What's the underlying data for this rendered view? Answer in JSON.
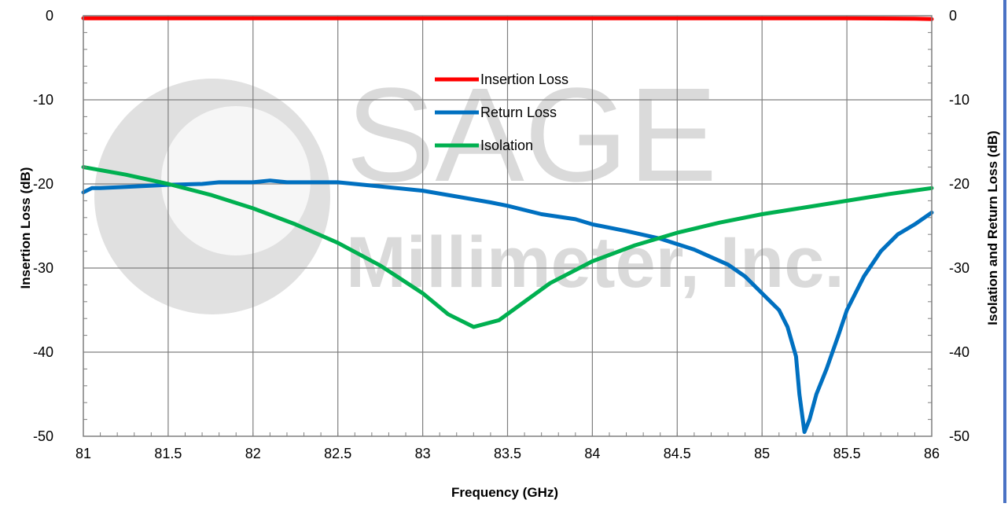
{
  "chart_data": {
    "type": "line",
    "xlabel": "Frequency (GHz)",
    "ylabel": "Insertion Loss (dB)",
    "y2label": "Isolation and Return Loss (dB)",
    "xlim": [
      81,
      86
    ],
    "ylim": [
      -50,
      0
    ],
    "y2lim": [
      -50,
      0
    ],
    "x_ticks": [
      "81",
      "81.5",
      "82",
      "82.5",
      "83",
      "83.5",
      "84",
      "84.5",
      "85",
      "85.5",
      "86"
    ],
    "y_ticks": [
      "0",
      "-10",
      "-20",
      "-30",
      "-40",
      "-50"
    ],
    "y2_ticks": [
      "0",
      "-10",
      "-20",
      "-30",
      "-40",
      "-50"
    ],
    "grid": true,
    "legend_position": "top-center",
    "series": [
      {
        "name": "Insertion Loss",
        "color": "#ff0000",
        "axis": "left",
        "x": [
          81,
          81.5,
          82,
          82.5,
          83,
          83.5,
          84,
          84.5,
          85,
          85.5,
          85.9,
          86
        ],
        "y": [
          -0.3,
          -0.3,
          -0.3,
          -0.3,
          -0.3,
          -0.3,
          -0.3,
          -0.3,
          -0.3,
          -0.3,
          -0.35,
          -0.4
        ]
      },
      {
        "name": "Return Loss",
        "color": "#0070c0",
        "axis": "right",
        "x": [
          81,
          81.05,
          81.1,
          81.3,
          81.5,
          81.7,
          81.8,
          82,
          82.1,
          82.2,
          82.5,
          82.7,
          83,
          83.2,
          83.4,
          83.5,
          83.7,
          83.9,
          84,
          84.2,
          84.4,
          84.6,
          84.8,
          84.9,
          85,
          85.1,
          85.15,
          85.2,
          85.22,
          85.25,
          85.28,
          85.32,
          85.38,
          85.45,
          85.5,
          85.6,
          85.7,
          85.8,
          85.9,
          86
        ],
        "y": [
          -21,
          -20.5,
          -20.5,
          -20.3,
          -20.1,
          -20,
          -19.8,
          -19.8,
          -19.6,
          -19.8,
          -19.8,
          -20.2,
          -20.8,
          -21.5,
          -22.2,
          -22.6,
          -23.6,
          -24.2,
          -24.8,
          -25.6,
          -26.5,
          -27.8,
          -29.6,
          -31,
          -33,
          -35,
          -37,
          -40.5,
          -45,
          -49.5,
          -48,
          -45,
          -42,
          -38,
          -35,
          -31,
          -28,
          -26,
          -24.8,
          -23.4
        ]
      },
      {
        "name": "Isolation",
        "color": "#00b050",
        "axis": "right",
        "x": [
          81,
          81.25,
          81.5,
          81.75,
          82,
          82.25,
          82.5,
          82.75,
          83,
          83.15,
          83.3,
          83.45,
          83.6,
          83.75,
          84,
          84.25,
          84.5,
          84.75,
          85,
          85.25,
          85.5,
          85.75,
          86
        ],
        "y": [
          -18,
          -18.9,
          -20,
          -21.3,
          -22.9,
          -24.8,
          -27,
          -29.7,
          -33,
          -35.5,
          -37,
          -36.2,
          -34,
          -31.8,
          -29.2,
          -27.3,
          -25.8,
          -24.6,
          -23.6,
          -22.8,
          -22,
          -21.2,
          -20.5
        ]
      }
    ]
  },
  "watermark": {
    "line1": "SAGE",
    "line2": "Millimeter, Inc."
  }
}
